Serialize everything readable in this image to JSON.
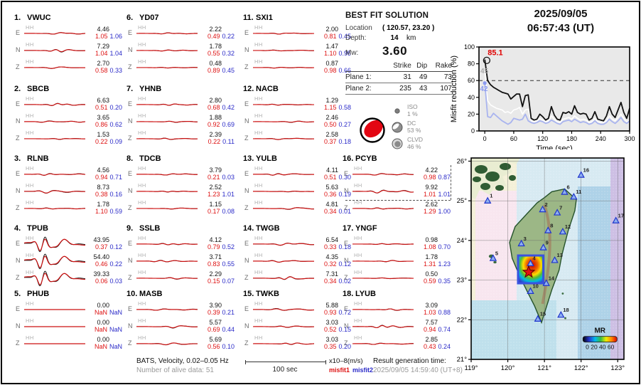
{
  "header": {
    "date": "2025/09/05",
    "time": "06:57:43  (UT)"
  },
  "solution": {
    "title": "BEST FIT SOLUTION",
    "location_label": "Location",
    "location_value": "( 120.57,  23.20 )",
    "depth_label": "Depth:",
    "depth_value": "14",
    "depth_unit": "km",
    "mw_label": "Mw:",
    "mw_value": "3.60",
    "table": {
      "headers": [
        "Strike",
        "Dip",
        "Rake"
      ],
      "rows": [
        {
          "label": "Plane 1:",
          "values": [
            "31",
            "49",
            "73"
          ]
        },
        {
          "label": "Plane 2:",
          "values": [
            "235",
            "43",
            "107"
          ]
        }
      ]
    },
    "decomposition": [
      {
        "name": "ISO",
        "pct": "1 %"
      },
      {
        "name": "DC",
        "pct": "53 %"
      },
      {
        "name": "CLVD",
        "pct": "46 %"
      }
    ]
  },
  "footer": {
    "bats_line": "BATS, Velocity, 0.02–0.05 Hz",
    "alive_line": "Number of alive data: 51",
    "scale_label": "100 sec",
    "unit_label": "x10–8(m/s)",
    "misfit1_label": "misfit1",
    "misfit2_label": "misfit2",
    "result_label": "Result generation time:",
    "result_time": "2025/09/05 14:59:40 (UT+8)"
  },
  "colors": {
    "misfit1": "#dd1111",
    "misfit2": "#2a2ac8",
    "curve_best": "#111111",
    "curve_mid": "#ffffff",
    "curve_low": "#a9b4ef",
    "beachball_red": "#e30613",
    "triangle_fill": "#8fb0f0",
    "triangle_stroke": "#1f35cc"
  },
  "chart_data": [
    {
      "id": "waveform-fits",
      "type": "table",
      "columns": [
        "station",
        "component",
        "channel",
        "amplitude",
        "misfit1",
        "misfit2"
      ],
      "stations": [
        {
          "num": "1.",
          "code": "VWUC",
          "channels": [
            {
              "comp": "E",
              "band": "HH",
              "amp": "4.46",
              "m1": "1.05",
              "m2": "1.06"
            },
            {
              "comp": "N",
              "band": "HH",
              "amp": "7.29",
              "m1": "1.04",
              "m2": "1.04"
            },
            {
              "comp": "Z",
              "band": "HH",
              "amp": "2.70",
              "m1": "0.58",
              "m2": "0.33"
            }
          ]
        },
        {
          "num": "2.",
          "code": "SBCB",
          "channels": [
            {
              "comp": "E",
              "band": "HH",
              "amp": "6.63",
              "m1": "0.51",
              "m2": "0.20"
            },
            {
              "comp": "N",
              "band": "HH",
              "amp": "3.65",
              "m1": "0.86",
              "m2": "0.62"
            },
            {
              "comp": "Z",
              "band": "HH",
              "amp": "1.53",
              "m1": "0.22",
              "m2": "0.09"
            }
          ]
        },
        {
          "num": "3.",
          "code": "RLNB",
          "channels": [
            {
              "comp": "E",
              "band": "HH",
              "amp": "4.56",
              "m1": "0.94",
              "m2": "0.71"
            },
            {
              "comp": "N",
              "band": "HH",
              "amp": "8.73",
              "m1": "0.38",
              "m2": "0.16"
            },
            {
              "comp": "Z",
              "band": "HH",
              "amp": "1.78",
              "m1": "1.10",
              "m2": "0.59"
            }
          ]
        },
        {
          "num": "4.",
          "code": "TPUB",
          "channels": [
            {
              "comp": "E",
              "band": "HH",
              "amp": "43.95",
              "m1": "0.37",
              "m2": "0.12"
            },
            {
              "comp": "N",
              "band": "HH",
              "amp": "54.40",
              "m1": "0.46",
              "m2": "0.22"
            },
            {
              "comp": "Z",
              "band": "HH",
              "amp": "39.33",
              "m1": "0.06",
              "m2": "0.03"
            }
          ]
        },
        {
          "num": "5.",
          "code": "PHUB",
          "channels": [
            {
              "comp": "E",
              "band": "HH",
              "amp": "0.00",
              "m1": "NaN",
              "m2": "NaN"
            },
            {
              "comp": "N",
              "band": "HH",
              "amp": "0.00",
              "m1": "NaN",
              "m2": "NaN"
            },
            {
              "comp": "Z",
              "band": "HH",
              "amp": "0.00",
              "m1": "NaN",
              "m2": "NaN"
            }
          ]
        },
        {
          "num": "6.",
          "code": "YD07",
          "channels": [
            {
              "comp": "E",
              "band": "HH",
              "amp": "2.22",
              "m1": "0.49",
              "m2": "0.22"
            },
            {
              "comp": "N",
              "band": "HH",
              "amp": "1.78",
              "m1": "0.55",
              "m2": "0.32"
            },
            {
              "comp": "Z",
              "band": "HH",
              "amp": "0.48",
              "m1": "0.89",
              "m2": "0.45"
            }
          ]
        },
        {
          "num": "7.",
          "code": "YHNB",
          "channels": [
            {
              "comp": "E",
              "band": "HH",
              "amp": "2.80",
              "m1": "0.68",
              "m2": "0.42"
            },
            {
              "comp": "N",
              "band": "HH",
              "amp": "1.88",
              "m1": "0.92",
              "m2": "0.69"
            },
            {
              "comp": "Z",
              "band": "HH",
              "amp": "2.39",
              "m1": "0.22",
              "m2": "0.11"
            }
          ]
        },
        {
          "num": "8.",
          "code": "TDCB",
          "channels": [
            {
              "comp": "E",
              "band": "HH",
              "amp": "3.79",
              "m1": "0.21",
              "m2": "0.03"
            },
            {
              "comp": "N",
              "band": "HH",
              "amp": "2.52",
              "m1": "1.23",
              "m2": "1.01"
            },
            {
              "comp": "Z",
              "band": "HH",
              "amp": "1.15",
              "m1": "0.17",
              "m2": "0.08"
            }
          ]
        },
        {
          "num": "9.",
          "code": "SSLB",
          "channels": [
            {
              "comp": "E",
              "band": "HH",
              "amp": "4.12",
              "m1": "0.79",
              "m2": "0.52"
            },
            {
              "comp": "N",
              "band": "HH",
              "amp": "3.71",
              "m1": "0.83",
              "m2": "0.55"
            },
            {
              "comp": "Z",
              "band": "HH",
              "amp": "2.29",
              "m1": "0.15",
              "m2": "0.07"
            }
          ]
        },
        {
          "num": "10.",
          "code": "MASB",
          "channels": [
            {
              "comp": "E",
              "band": "HH",
              "amp": "3.90",
              "m1": "0.39",
              "m2": "0.21"
            },
            {
              "comp": "N",
              "band": "HH",
              "amp": "5.57",
              "m1": "0.69",
              "m2": "0.44"
            },
            {
              "comp": "Z",
              "band": "HH",
              "amp": "5.69",
              "m1": "0.56",
              "m2": "0.10"
            }
          ]
        },
        {
          "num": "11.",
          "code": "SXI1",
          "channels": [
            {
              "comp": "E",
              "band": "HH",
              "amp": "2.00",
              "m1": "0.81",
              "m2": "0.45"
            },
            {
              "comp": "N",
              "band": "HH",
              "amp": "1.47",
              "m1": "1.10",
              "m2": "0.95"
            },
            {
              "comp": "Z",
              "band": "HH",
              "amp": "0.87",
              "m1": "0.98",
              "m2": "0.66"
            }
          ]
        },
        {
          "num": "12.",
          "code": "NACB",
          "channels": [
            {
              "comp": "E",
              "band": "HH",
              "amp": "1.29",
              "m1": "1.15",
              "m2": "0.58"
            },
            {
              "comp": "N",
              "band": "HH",
              "amp": "2.46",
              "m1": "0.50",
              "m2": "0.27"
            },
            {
              "comp": "Z",
              "band": "HH",
              "amp": "2.58",
              "m1": "0.37",
              "m2": "0.18"
            }
          ]
        },
        {
          "num": "13.",
          "code": "YULB",
          "channels": [
            {
              "comp": "E",
              "band": "HH",
              "amp": "4.11",
              "m1": "0.51",
              "m2": "0.30"
            },
            {
              "comp": "N",
              "band": "HH",
              "amp": "5.63",
              "m1": "0.36",
              "m2": "0.19"
            },
            {
              "comp": "Z",
              "band": "HH",
              "amp": "4.81",
              "m1": "0.34",
              "m2": "0.01"
            }
          ]
        },
        {
          "num": "14.",
          "code": "TWGB",
          "channels": [
            {
              "comp": "E",
              "band": "HH",
              "amp": "6.54",
              "m1": "0.33",
              "m2": "0.18"
            },
            {
              "comp": "N",
              "band": "HH",
              "amp": "4.35",
              "m1": "0.32",
              "m2": "0.12"
            },
            {
              "comp": "Z",
              "band": "HH",
              "amp": "7.31",
              "m1": "0.34",
              "m2": "0.02"
            }
          ]
        },
        {
          "num": "15.",
          "code": "TWKB",
          "channels": [
            {
              "comp": "E",
              "band": "HH",
              "amp": "5.88",
              "m1": "0.93",
              "m2": "0.72"
            },
            {
              "comp": "N",
              "band": "HH",
              "amp": "3.03",
              "m1": "0.52",
              "m2": "0.15"
            },
            {
              "comp": "Z",
              "band": "HH",
              "amp": "3.03",
              "m1": "0.35",
              "m2": "0.20"
            }
          ]
        },
        {
          "num": "16.",
          "code": "PCYB",
          "channels": [
            {
              "comp": "E",
              "band": "HH",
              "amp": "4.22",
              "m1": "0.98",
              "m2": "0.87"
            },
            {
              "comp": "N",
              "band": "HH",
              "amp": "9.92",
              "m1": "1.01",
              "m2": "1.01"
            },
            {
              "comp": "Z",
              "band": "HH",
              "amp": "2.62",
              "m1": "1.29",
              "m2": "1.00"
            }
          ]
        },
        {
          "num": "17.",
          "code": "YNGF",
          "channels": [
            {
              "comp": "E",
              "band": "HH",
              "amp": "0.98",
              "m1": "1.08",
              "m2": "0.70"
            },
            {
              "comp": "N",
              "band": "HH",
              "amp": "1.78",
              "m1": "1.31",
              "m2": "1.23"
            },
            {
              "comp": "Z",
              "band": "HH",
              "amp": "0.50",
              "m1": "0.59",
              "m2": "0.35"
            }
          ]
        },
        {
          "num": "18.",
          "code": "LYUB",
          "channels": [
            {
              "comp": "E",
              "band": "HH",
              "amp": "3.09",
              "m1": "1.03",
              "m2": "0.88"
            },
            {
              "comp": "N",
              "band": "HH",
              "amp": "7.57",
              "m1": "0.94",
              "m2": "0.74"
            },
            {
              "comp": "Z",
              "band": "HH",
              "amp": "2.85",
              "m1": "0.43",
              "m2": "0.24"
            }
          ]
        }
      ]
    },
    {
      "id": "misfit-reduction",
      "type": "line",
      "ylabel": "Misfit reduction (%)",
      "xlabel": "Time (sec)",
      "xlim": [
        -12,
        300
      ],
      "ylim": [
        0,
        100
      ],
      "xticks": [
        0,
        60,
        120,
        180,
        240,
        300
      ],
      "yticks": [
        0,
        20,
        40,
        60,
        80,
        100
      ],
      "dashed_line_y": 60,
      "x_step": 6,
      "annotations": [
        {
          "text": "85.1",
          "color": "#e00000",
          "y": 93
        },
        {
          "text": "45",
          "color": "#ababab",
          "y": 71
        },
        {
          "text": "42",
          "color": "#8c9bf0",
          "y": 50
        }
      ],
      "series": [
        {
          "name": "misfit-mid",
          "color": "#ffffff",
          "values": [
            72,
            36,
            31,
            29,
            27,
            26,
            25,
            22,
            23,
            21,
            25,
            26,
            28,
            20,
            25,
            26,
            12,
            11,
            12,
            15,
            13,
            11,
            12,
            18,
            14,
            11,
            10,
            14,
            15,
            16,
            14,
            18,
            15,
            13,
            14,
            13,
            10,
            11,
            15,
            11,
            10,
            10,
            12,
            18,
            14,
            12,
            16,
            20,
            15,
            11,
            13
          ]
        },
        {
          "name": "misfit-low",
          "color": "#a9b4ef",
          "values": [
            57,
            17,
            16,
            21,
            18,
            15,
            12,
            10,
            8,
            10,
            15,
            14,
            13,
            14,
            20,
            12,
            10,
            9,
            10,
            12,
            11,
            9,
            10,
            13,
            11,
            9,
            8,
            11,
            12,
            13,
            11,
            14,
            12,
            10,
            11,
            10,
            8,
            9,
            12,
            9,
            8,
            8,
            10,
            14,
            11,
            9,
            12,
            16,
            11,
            9,
            12
          ]
        },
        {
          "name": "misfit-best",
          "color": "#111111",
          "values": [
            85.1,
            60,
            55,
            52,
            50,
            48,
            46,
            45,
            44,
            38,
            41,
            44,
            44,
            29,
            42,
            43,
            15,
            13,
            14,
            20,
            17,
            13,
            15,
            29,
            19,
            14,
            13,
            22,
            21,
            23,
            20,
            30,
            22,
            20,
            21,
            20,
            13,
            15,
            23,
            14,
            13,
            12,
            18,
            29,
            20,
            16,
            25,
            34,
            22,
            15,
            27
          ]
        }
      ]
    },
    {
      "id": "station-map",
      "type": "map",
      "lon_range": [
        119,
        123.17
      ],
      "lat_range": [
        21,
        26.08
      ],
      "lon_ticks": [
        "119°",
        "120°",
        "121°",
        "122°",
        "123°"
      ],
      "lat_ticks": [
        "26°",
        "25°",
        "24°",
        "23°",
        "22°",
        "21°"
      ],
      "epicenter": {
        "lon": 120.57,
        "lat": 23.2
      },
      "epicenter_box": {
        "lon_min": 120.28,
        "lon_max": 120.97,
        "lat_min": 22.92,
        "lat_max": 23.62
      },
      "colorbar": {
        "title": "MR",
        "ticks": "0 20 40 60"
      },
      "stations": [
        {
          "n": "1",
          "lon": 119.45,
          "lat": 25.0
        },
        {
          "n": "2",
          "lon": 120.95,
          "lat": 24.78
        },
        {
          "n": "3",
          "lon": 120.37,
          "lat": 23.92
        },
        {
          "n": "4",
          "lon": 120.62,
          "lat": 23.42
        },
        {
          "n": "5",
          "lon": 119.6,
          "lat": 23.55
        },
        {
          "n": "6",
          "lon": 121.55,
          "lat": 25.22
        },
        {
          "n": "7",
          "lon": 121.35,
          "lat": 24.7
        },
        {
          "n": "8",
          "lon": 121.1,
          "lat": 24.25
        },
        {
          "n": "9",
          "lon": 120.97,
          "lat": 23.82
        },
        {
          "n": "10",
          "lon": 120.62,
          "lat": 22.72
        },
        {
          "n": "11",
          "lon": 121.8,
          "lat": 25.1
        },
        {
          "n": "12",
          "lon": 121.5,
          "lat": 24.22
        },
        {
          "n": "13",
          "lon": 121.28,
          "lat": 23.5
        },
        {
          "n": "14",
          "lon": 121.05,
          "lat": 22.92
        },
        {
          "n": "15",
          "lon": 120.82,
          "lat": 22.02
        },
        {
          "n": "16",
          "lon": 122.0,
          "lat": 25.65
        },
        {
          "n": "17",
          "lon": 122.95,
          "lat": 24.5
        },
        {
          "n": "18",
          "lon": 121.45,
          "lat": 22.12
        }
      ]
    }
  ]
}
